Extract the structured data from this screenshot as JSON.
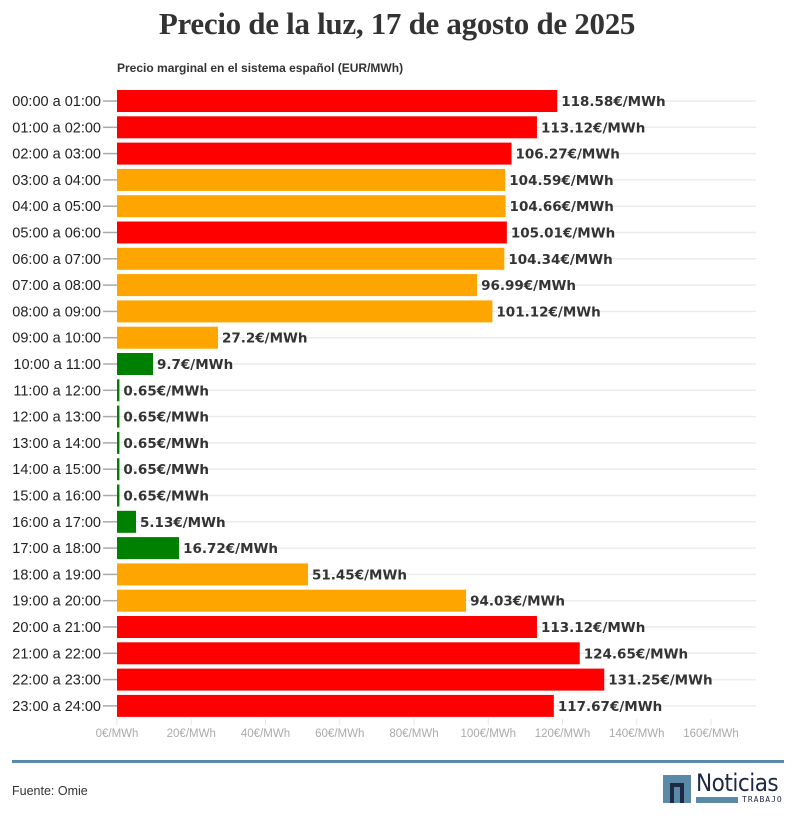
{
  "chart_data": {
    "type": "bar",
    "orientation": "horizontal",
    "title": "Precio de la luz, 17 de agosto de 2025",
    "subtitle": "Precio marginal en el sistema español (EUR/MWh)",
    "xlabel": "",
    "ylabel": "",
    "xlim": [
      0,
      160
    ],
    "grid": true,
    "unit_suffix": "€/MWh",
    "xticks": [
      0,
      20,
      40,
      60,
      80,
      100,
      120,
      140,
      160
    ],
    "xtick_labels": [
      "0€/MWh",
      "20€/MWh",
      "40€/MWh",
      "60€/MWh",
      "80€/MWh",
      "100€/MWh",
      "120€/MWh",
      "140€/MWh",
      "160€/MWh"
    ],
    "colors": {
      "high": "#ff0000",
      "medium": "#ffa500",
      "low": "#008000"
    },
    "categories": [
      "00:00 a 01:00",
      "01:00 a 02:00",
      "02:00 a 03:00",
      "03:00 a 04:00",
      "04:00 a 05:00",
      "05:00 a 06:00",
      "06:00 a 07:00",
      "07:00 a 08:00",
      "08:00 a 09:00",
      "09:00 a 10:00",
      "10:00 a 11:00",
      "11:00 a 12:00",
      "12:00 a 13:00",
      "13:00 a 14:00",
      "14:00 a 15:00",
      "15:00 a 16:00",
      "16:00 a 17:00",
      "17:00 a 18:00",
      "18:00 a 19:00",
      "19:00 a 20:00",
      "20:00 a 21:00",
      "21:00 a 22:00",
      "22:00 a 23:00",
      "23:00 a 24:00"
    ],
    "values": [
      118.58,
      113.12,
      106.27,
      104.59,
      104.66,
      105.01,
      104.34,
      96.99,
      101.12,
      27.2,
      9.7,
      0.65,
      0.65,
      0.65,
      0.65,
      0.65,
      5.13,
      16.72,
      51.45,
      94.03,
      113.12,
      124.65,
      131.25,
      117.67
    ],
    "value_labels": [
      "118.58€/MWh",
      "113.12€/MWh",
      "106.27€/MWh",
      "104.59€/MWh",
      "104.66€/MWh",
      "105.01€/MWh",
      "104.34€/MWh",
      "96.99€/MWh",
      "101.12€/MWh",
      "27.2€/MWh",
      "9.7€/MWh",
      "0.65€/MWh",
      "0.65€/MWh",
      "0.65€/MWh",
      "0.65€/MWh",
      "0.65€/MWh",
      "5.13€/MWh",
      "16.72€/MWh",
      "51.45€/MWh",
      "94.03€/MWh",
      "113.12€/MWh",
      "124.65€/MWh",
      "131.25€/MWh",
      "117.67€/MWh"
    ],
    "levels": [
      "high",
      "high",
      "high",
      "medium",
      "medium",
      "high",
      "medium",
      "medium",
      "medium",
      "medium",
      "low",
      "low",
      "low",
      "low",
      "low",
      "low",
      "low",
      "low",
      "medium",
      "medium",
      "high",
      "high",
      "high",
      "high"
    ]
  },
  "footer": {
    "source": "Fuente: Omie",
    "logo_word": "Noticias",
    "logo_sub": "TRABAJO"
  }
}
